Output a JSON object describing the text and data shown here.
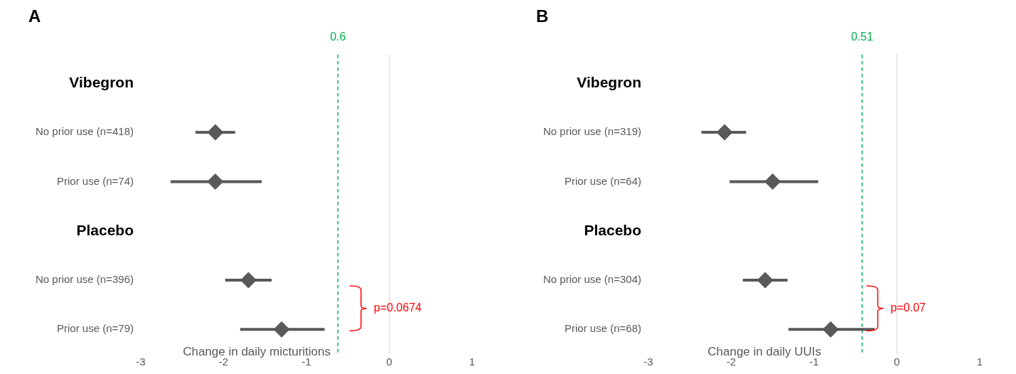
{
  "chart_data": [
    {
      "type": "scatter",
      "title": "A",
      "orientation": "horizontal",
      "marker": "diamond",
      "color": "#595959",
      "xlabel": "Change in daily micturitions",
      "categories": [
        "Vibegron",
        "No prior use (n=418)",
        "Prior use (n=74)",
        "Placebo",
        "No prior use (n=396)",
        "Prior use (n=79)"
      ],
      "values": [
        null,
        -2.1,
        -2.1,
        null,
        -1.7,
        -1.3
      ],
      "errors": [
        null,
        [
          -2.34,
          -1.86
        ],
        [
          -2.64,
          -1.54
        ],
        null,
        [
          -1.98,
          -1.42
        ],
        [
          -1.8,
          -0.78
        ]
      ],
      "xlim": [
        -3,
        1
      ],
      "xticks": [
        -3,
        -2,
        -1,
        0,
        1
      ],
      "ref_lines": [
        {
          "axis": "x",
          "value": 0,
          "color": "#d9d9d9",
          "line_style": "solid"
        },
        {
          "axis": "x",
          "value": -0.62,
          "color": "#00b050",
          "line_style": "dashed"
        }
      ],
      "annotations": [
        "0.6",
        "p=0.0674"
      ]
    },
    {
      "type": "scatter",
      "title": "B",
      "orientation": "horizontal",
      "marker": "diamond",
      "color": "#595959",
      "xlabel": "Change in daily UUIs",
      "categories": [
        "Vibegron",
        "No prior use (n=319)",
        "Prior use (n=64)",
        "Placebo",
        "No prior use (n=304)",
        "Prior use (n=68)"
      ],
      "values": [
        null,
        -2.08,
        -1.5,
        null,
        -1.59,
        -0.8
      ],
      "errors": [
        null,
        [
          -2.36,
          -1.82
        ],
        [
          -2.02,
          -0.95
        ],
        null,
        [
          -1.86,
          -1.32
        ],
        [
          -1.31,
          -0.27
        ]
      ],
      "xlim": [
        -3,
        1
      ],
      "xticks": [
        -3,
        -2,
        -1,
        0,
        1
      ],
      "ref_lines": [
        {
          "axis": "x",
          "value": 0,
          "color": "#d9d9d9",
          "line_style": "solid"
        },
        {
          "axis": "x",
          "value": -0.42,
          "color": "#00b050",
          "line_style": "dashed"
        }
      ],
      "annotations": [
        "0.51",
        "p=0.07"
      ]
    }
  ]
}
